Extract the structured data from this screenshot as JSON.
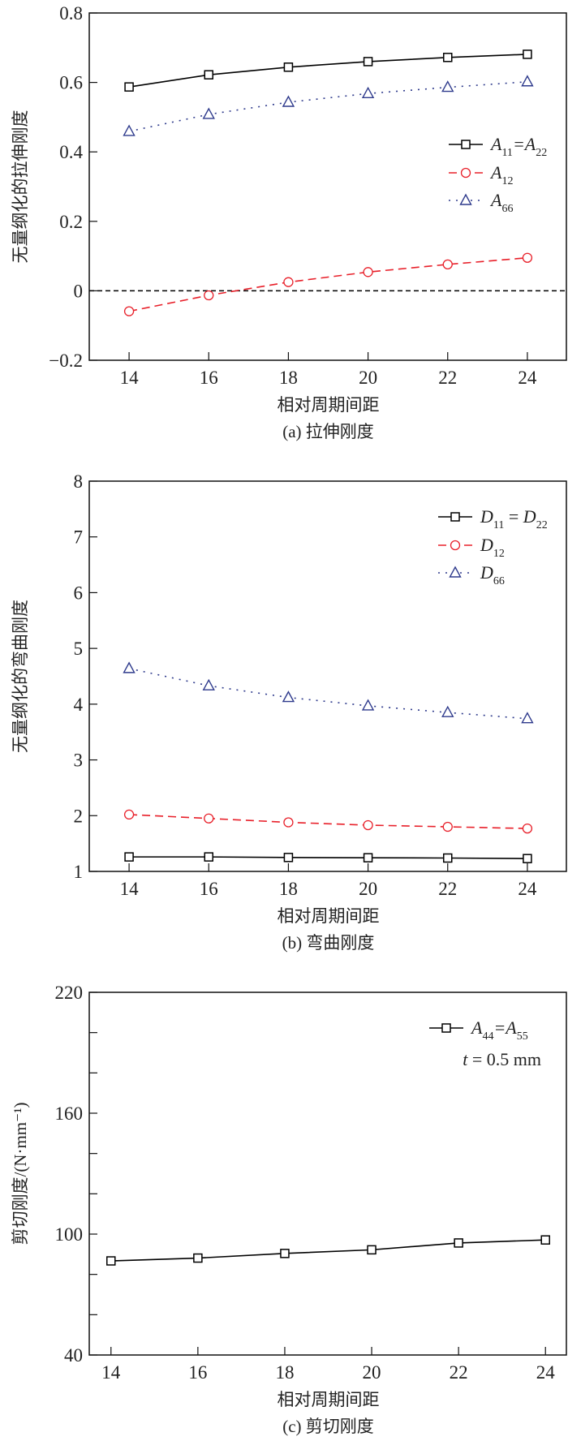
{
  "chart_data": [
    {
      "type": "line",
      "caption": "(a) 拉伸刚度",
      "xlabel": "相对周期间距",
      "ylabel": "无量纲化的拉伸刚度",
      "xlim": [
        13,
        25
      ],
      "ylim": [
        -0.2,
        0.8
      ],
      "xticks": [
        14,
        16,
        18,
        20,
        22,
        24
      ],
      "yticks": [
        -0.2,
        0,
        0.2,
        0.4,
        0.6,
        0.8
      ],
      "ytick_labels": [
        "−0.2",
        "0",
        "0.2",
        "0.4",
        "0.6",
        "0.8"
      ],
      "minor_yticks": [],
      "reference_line": {
        "y": 0,
        "style": "dashed",
        "color": "#000000"
      },
      "legend_position": "right",
      "x": [
        14,
        16,
        18,
        20,
        22,
        24
      ],
      "series": [
        {
          "name": "A11=A22",
          "label_parts": [
            {
              "t": "A",
              "i": true
            },
            {
              "t": "11",
              "sub": true
            },
            {
              "t": "=A",
              "i": true
            },
            {
              "t": "22",
              "sub": true
            }
          ],
          "marker": "square",
          "dash": "solid",
          "color": "#000000",
          "values": [
            0.587,
            0.622,
            0.644,
            0.66,
            0.672,
            0.681
          ]
        },
        {
          "name": "A12",
          "label_parts": [
            {
              "t": "A",
              "i": true
            },
            {
              "t": "12",
              "sub": true
            }
          ],
          "marker": "circle",
          "dash": "dashed",
          "color": "#e8202a",
          "values": [
            -0.059,
            -0.013,
            0.025,
            0.054,
            0.076,
            0.095
          ]
        },
        {
          "name": "A66",
          "label_parts": [
            {
              "t": "A",
              "i": true
            },
            {
              "t": "66",
              "sub": true
            }
          ],
          "marker": "triangle",
          "dash": "dotted",
          "color": "#2e3a8c",
          "values": [
            0.459,
            0.508,
            0.543,
            0.568,
            0.586,
            0.602
          ]
        }
      ]
    },
    {
      "type": "line",
      "caption": "(b) 弯曲刚度",
      "xlabel": "相对周期间距",
      "ylabel": "无量纲化的弯曲刚度",
      "xlim": [
        13,
        25
      ],
      "ylim": [
        1,
        8
      ],
      "xticks": [
        14,
        16,
        18,
        20,
        22,
        24
      ],
      "yticks": [
        1,
        2,
        3,
        4,
        5,
        6,
        7,
        8
      ],
      "ytick_labels": [
        "1",
        "2",
        "3",
        "4",
        "5",
        "6",
        "7",
        "8"
      ],
      "minor_yticks": [],
      "legend_position": "top-right",
      "x": [
        14,
        16,
        18,
        20,
        22,
        24
      ],
      "series": [
        {
          "name": "D11 = D22",
          "label_parts": [
            {
              "t": "D",
              "i": true
            },
            {
              "t": "11",
              "sub": true
            },
            {
              "t": " = "
            },
            {
              "t": "D",
              "i": true
            },
            {
              "t": "22",
              "sub": true
            }
          ],
          "marker": "square",
          "dash": "solid",
          "color": "#000000",
          "values": [
            1.26,
            1.26,
            1.25,
            1.245,
            1.24,
            1.23
          ]
        },
        {
          "name": "D12",
          "label_parts": [
            {
              "t": "D",
              "i": true
            },
            {
              "t": "12",
              "sub": true
            }
          ],
          "marker": "circle",
          "dash": "dashed",
          "color": "#e8202a",
          "values": [
            2.02,
            1.95,
            1.88,
            1.83,
            1.8,
            1.77
          ]
        },
        {
          "name": "D66",
          "label_parts": [
            {
              "t": "D",
              "i": true
            },
            {
              "t": "66",
              "sub": true
            }
          ],
          "marker": "triangle",
          "dash": "dotted",
          "color": "#2e3a8c",
          "values": [
            4.64,
            4.33,
            4.12,
            3.97,
            3.85,
            3.74
          ]
        }
      ]
    },
    {
      "type": "line",
      "caption": "(c) 剪切刚度",
      "xlabel": "相对周期间距",
      "ylabel": "剪切刚度/(N·mm⁻¹)",
      "xlim": [
        13.5,
        24.5
      ],
      "ylim": [
        40,
        220
      ],
      "xticks": [
        14,
        16,
        18,
        20,
        22,
        24
      ],
      "yticks": [
        40,
        100,
        160,
        220
      ],
      "ytick_labels": [
        "40",
        "100",
        "160",
        "220"
      ],
      "minor_yticks": [
        60,
        80,
        120,
        140,
        180,
        200
      ],
      "legend_position": "top-right",
      "annotation": "t = 0.5 mm",
      "x": [
        14,
        16,
        18,
        20,
        22,
        24
      ],
      "series": [
        {
          "name": "A44=A55",
          "label_parts": [
            {
              "t": "A",
              "i": true
            },
            {
              "t": "44",
              "sub": true
            },
            {
              "t": "=A",
              "i": true
            },
            {
              "t": "55",
              "sub": true
            }
          ],
          "marker": "square",
          "dash": "solid",
          "color": "#000000",
          "values": [
            86.7,
            88.1,
            90.4,
            92.2,
            95.6,
            97.1
          ]
        }
      ]
    }
  ]
}
